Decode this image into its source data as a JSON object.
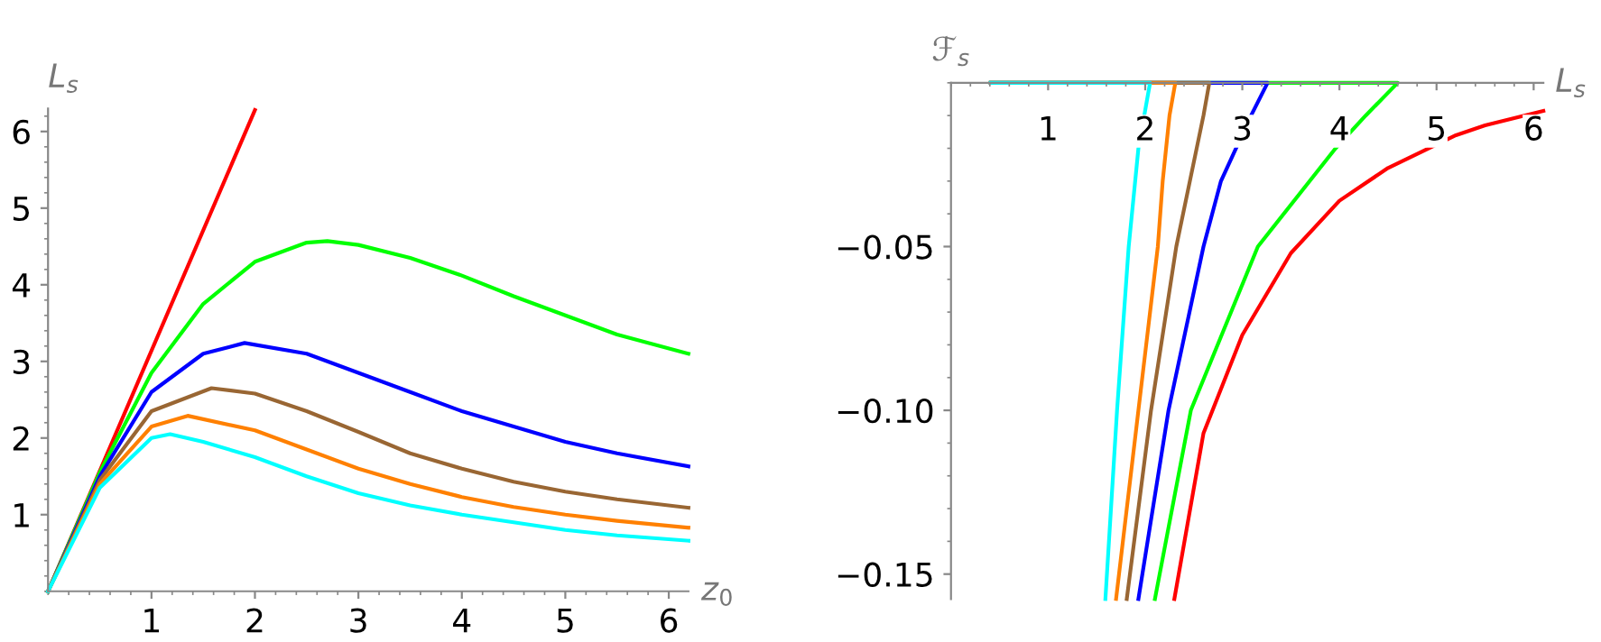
{
  "chart_data": [
    {
      "type": "line",
      "xlabel": "z$_{0}$",
      "ylabel": "L$_{s}$",
      "xlim": [
        0,
        6.19
      ],
      "ylim": [
        0,
        6.3
      ],
      "xticks": [
        1,
        2,
        3,
        4,
        5,
        6
      ],
      "yticks": [
        1,
        2,
        3,
        4,
        5,
        6
      ],
      "grid": false,
      "series": [
        {
          "color": "#ff0000",
          "x": [
            0,
            2.0
          ],
          "values": [
            0,
            6.28
          ]
        },
        {
          "color": "#00ff00",
          "x": [
            0,
            0.5,
            1,
            1.5,
            2,
            2.5,
            2.7,
            3,
            3.5,
            4,
            4.5,
            5,
            5.5,
            6.19
          ],
          "values": [
            0,
            1.55,
            2.85,
            3.75,
            4.3,
            4.55,
            4.57,
            4.52,
            4.35,
            4.12,
            3.85,
            3.6,
            3.35,
            3.1
          ]
        },
        {
          "color": "#0000ff",
          "x": [
            0,
            0.5,
            1,
            1.5,
            1.9,
            2.5,
            3,
            3.5,
            4,
            4.5,
            5,
            5.5,
            6.19
          ],
          "values": [
            0,
            1.5,
            2.6,
            3.1,
            3.24,
            3.1,
            2.85,
            2.6,
            2.35,
            2.15,
            1.95,
            1.8,
            1.63
          ]
        },
        {
          "color": "#996633",
          "x": [
            0,
            0.5,
            1,
            1.58,
            2,
            2.5,
            3,
            3.5,
            4,
            4.5,
            5,
            5.5,
            6.19
          ],
          "values": [
            0,
            1.45,
            2.35,
            2.65,
            2.58,
            2.35,
            2.08,
            1.8,
            1.6,
            1.43,
            1.3,
            1.2,
            1.09
          ]
        },
        {
          "color": "#ff8000",
          "x": [
            0,
            0.5,
            1,
            1.35,
            2,
            2.5,
            3,
            3.5,
            4,
            4.5,
            5,
            5.5,
            6.19
          ],
          "values": [
            0,
            1.4,
            2.15,
            2.29,
            2.1,
            1.85,
            1.6,
            1.4,
            1.23,
            1.1,
            1.0,
            0.92,
            0.83
          ]
        },
        {
          "color": "#00ffff",
          "x": [
            0,
            0.5,
            1,
            1.18,
            1.5,
            2,
            2.5,
            3,
            3.5,
            4,
            4.5,
            5,
            5.5,
            6.19
          ],
          "values": [
            0,
            1.35,
            2.0,
            2.05,
            1.95,
            1.75,
            1.5,
            1.28,
            1.12,
            1.0,
            0.9,
            0.8,
            0.73,
            0.66
          ]
        }
      ]
    },
    {
      "type": "line",
      "xlabel": "L$_{s}$",
      "ylabel": "ℱ$_{s}$",
      "xlim": [
        0,
        6.1
      ],
      "ylim": [
        -0.1576,
        0
      ],
      "xticks": [
        1,
        2,
        3,
        4,
        5,
        6
      ],
      "yticks": [
        {
          "value": -0.05,
          "label": "−0.05"
        },
        {
          "value": -0.1,
          "label": "−0.10"
        },
        {
          "value": -0.15,
          "label": "−0.15"
        }
      ],
      "grid": false,
      "series": [
        {
          "color": "#ff0000",
          "x": [
            6.1,
            5.5,
            5.2,
            4.5,
            4.0,
            3.5,
            3.0,
            2.6,
            2.3
          ],
          "values": [
            -0.0086,
            -0.013,
            -0.016,
            -0.026,
            -0.036,
            -0.052,
            -0.077,
            -0.107,
            -0.1576
          ]
        },
        {
          "color": "#00ff00",
          "x": [
            0.41,
            4.6,
            4.27,
            3.96,
            3.16,
            2.47,
            2.1
          ],
          "values": [
            0,
            0,
            -0.01,
            -0.02,
            -0.05,
            -0.1,
            -0.1576
          ]
        },
        {
          "color": "#0000ff",
          "x": [
            0.41,
            3.26,
            3.09,
            2.78,
            2.6,
            2.24,
            1.93
          ],
          "values": [
            0,
            0,
            -0.01,
            -0.03,
            -0.05,
            -0.1,
            -0.1576
          ]
        },
        {
          "color": "#996633",
          "x": [
            0.41,
            2.66,
            2.6,
            2.32,
            2.06,
            1.81
          ],
          "values": [
            0,
            0,
            -0.01,
            -0.05,
            -0.1,
            -0.1576
          ]
        },
        {
          "color": "#ff8000",
          "x": [
            0.41,
            2.31,
            2.25,
            2.18,
            2.13,
            1.93,
            1.7
          ],
          "values": [
            0,
            0,
            -0.01,
            -0.03,
            -0.05,
            -0.1,
            -0.1576
          ]
        },
        {
          "color": "#00ffff",
          "x": [
            0.41,
            2.05,
            1.93,
            1.83,
            1.71,
            1.59
          ],
          "values": [
            0,
            0,
            -0.02,
            -0.05,
            -0.1,
            -0.1576
          ]
        }
      ]
    }
  ]
}
